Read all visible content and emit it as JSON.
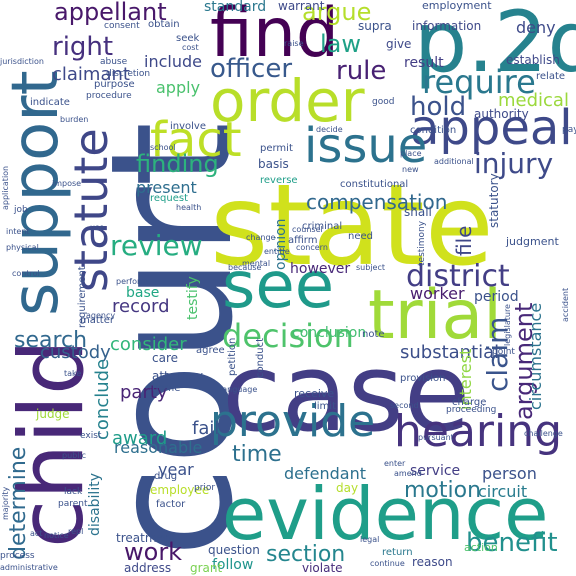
{
  "words": [
    {
      "text": "court",
      "color": "#3b528b"
    },
    {
      "text": "state",
      "color": "#d0e11c"
    },
    {
      "text": "case",
      "color": "#433e85"
    },
    {
      "text": "evidence",
      "color": "#1f9e89"
    },
    {
      "text": "child",
      "color": "#482878"
    },
    {
      "text": "support",
      "color": "#31688e"
    },
    {
      "text": "p.2d",
      "color": "#26828e"
    },
    {
      "text": "find",
      "color": "#440154"
    },
    {
      "text": "trial",
      "color": "#a0da39"
    },
    {
      "text": "order",
      "color": "#b8de29"
    },
    {
      "text": "see",
      "color": "#1f9a8a"
    },
    {
      "text": "appeal",
      "color": "#3e4989"
    },
    {
      "text": "issue",
      "color": "#2c728e"
    },
    {
      "text": "statute",
      "color": "#3f4788"
    },
    {
      "text": "fact",
      "color": "#bddf26"
    },
    {
      "text": "hearing",
      "color": "#46337e"
    },
    {
      "text": "provide",
      "color": "#2c728e"
    },
    {
      "text": "decision",
      "color": "#4ec36b"
    },
    {
      "text": "district",
      "color": "#433e85"
    },
    {
      "text": "review",
      "color": "#26ad81"
    },
    {
      "text": "finding",
      "color": "#2db27d"
    },
    {
      "text": "require",
      "color": "#2a788e"
    },
    {
      "text": "injury",
      "color": "#3e4a89"
    },
    {
      "text": "hold",
      "color": "#3b528b"
    },
    {
      "text": "officer",
      "color": "#38598c"
    },
    {
      "text": "rule",
      "color": "#482173"
    },
    {
      "text": "right",
      "color": "#46307e"
    },
    {
      "text": "law",
      "color": "#1fa187"
    },
    {
      "text": "argue",
      "color": "#b5de2b"
    },
    {
      "text": "appellant",
      "color": "#48186a"
    },
    {
      "text": "claimant",
      "color": "#3e4989"
    },
    {
      "text": "apply",
      "color": "#4ac16d"
    },
    {
      "text": "present",
      "color": "#2e6e8e"
    },
    {
      "text": "search",
      "color": "#31688e"
    },
    {
      "text": "determine",
      "color": "#306a8e"
    },
    {
      "text": "work",
      "color": "#481769"
    },
    {
      "text": "section",
      "color": "#24868e"
    },
    {
      "text": "time",
      "color": "#2d708e"
    },
    {
      "text": "motion",
      "color": "#2a788e"
    },
    {
      "text": "claim",
      "color": "#3a548c"
    },
    {
      "text": "benefit",
      "color": "#21908d"
    },
    {
      "text": "argument",
      "color": "#482878"
    },
    {
      "text": "compensation",
      "color": "#31688e"
    },
    {
      "text": "record",
      "color": "#453781"
    },
    {
      "text": "custody",
      "color": "#34618d"
    },
    {
      "text": "consider",
      "color": "#32b67a"
    },
    {
      "text": "conclude",
      "color": "#26828e"
    },
    {
      "text": "party",
      "color": "#482475"
    },
    {
      "text": "award",
      "color": "#1e9c89"
    },
    {
      "text": "fail",
      "color": "#3b528b"
    },
    {
      "text": "reasonable",
      "color": "#2e6f8e"
    },
    {
      "text": "year",
      "color": "#3b518b"
    },
    {
      "text": "defendant",
      "color": "#2d708e"
    },
    {
      "text": "person",
      "color": "#3b528b"
    },
    {
      "text": "circuit",
      "color": "#287c8e"
    },
    {
      "text": "worker",
      "color": "#481d6f"
    },
    {
      "text": "base",
      "color": "#22a785"
    },
    {
      "text": "medical",
      "color": "#9bd93c"
    },
    {
      "text": "substantial",
      "color": "#3c4f8a"
    },
    {
      "text": "interest",
      "color": "#90d743"
    },
    {
      "text": "circumstance",
      "color": "#2c738e"
    },
    {
      "text": "deny",
      "color": "#3e4a89"
    },
    {
      "text": "include",
      "color": "#3e4989"
    },
    {
      "text": "standard",
      "color": "#2a788e"
    },
    {
      "text": "opinion",
      "color": "#2c738e"
    },
    {
      "text": "however",
      "color": "#482878"
    },
    {
      "text": "testify",
      "color": "#4ac16d"
    },
    {
      "text": "disability",
      "color": "#2c738e"
    },
    {
      "text": "period",
      "color": "#3b528b"
    },
    {
      "text": "service",
      "color": "#433e85"
    },
    {
      "text": "conclusion",
      "color": "#42be71"
    },
    {
      "text": "employee",
      "color": "#b8de29"
    },
    {
      "text": "file",
      "color": "#3f4788"
    },
    {
      "text": "attorney",
      "color": "#3b528b"
    },
    {
      "text": "day",
      "color": "#b5de2b"
    },
    {
      "text": "treatment",
      "color": "#3b528b"
    },
    {
      "text": "follow",
      "color": "#1f948c"
    },
    {
      "text": "address",
      "color": "#3e4989"
    },
    {
      "text": "question",
      "color": "#3b528b"
    },
    {
      "text": "grant",
      "color": "#7ad151"
    },
    {
      "text": "violate",
      "color": "#472d7b"
    },
    {
      "text": "action",
      "color": "#4ec36b"
    },
    {
      "text": "reason",
      "color": "#3e4a89"
    },
    {
      "text": "return",
      "color": "#2a788e"
    },
    {
      "text": "result",
      "color": "#433e85"
    },
    {
      "text": "authority",
      "color": "#3e4a89"
    },
    {
      "text": "establish",
      "color": "#3e4989"
    },
    {
      "text": "employment",
      "color": "#3b528b"
    },
    {
      "text": "warrant",
      "color": "#3e4a89"
    },
    {
      "text": "information",
      "color": "#3e4989"
    },
    {
      "text": "supra",
      "color": "#3b528b"
    },
    {
      "text": "give",
      "color": "#3e4989"
    },
    {
      "text": "seek",
      "color": "#3b528b"
    },
    {
      "text": "purpose",
      "color": "#3b528b"
    },
    {
      "text": "procedure",
      "color": "#3b528b"
    },
    {
      "text": "indicate",
      "color": "#3b528b"
    },
    {
      "text": "involve",
      "color": "#3b528b"
    },
    {
      "text": "permit",
      "color": "#3b528b"
    },
    {
      "text": "condition",
      "color": "#3b528b"
    },
    {
      "text": "basis",
      "color": "#3b528b"
    },
    {
      "text": "reverse",
      "color": "#1f9e89"
    },
    {
      "text": "constitutional",
      "color": "#3b528b"
    },
    {
      "text": "shall",
      "color": "#3b528b"
    },
    {
      "text": "criminal",
      "color": "#3b528b"
    },
    {
      "text": "affirm",
      "color": "#3b528b"
    },
    {
      "text": "need",
      "color": "#3b528b"
    },
    {
      "text": "request",
      "color": "#1f9e89"
    },
    {
      "text": "statutory",
      "color": "#3b528b"
    },
    {
      "text": "judgment",
      "color": "#3b528b"
    },
    {
      "text": "judge",
      "color": "#a0da39"
    },
    {
      "text": "care",
      "color": "#3b528b"
    },
    {
      "text": "home",
      "color": "#3b528b"
    },
    {
      "text": "petition",
      "color": "#3b528b"
    },
    {
      "text": "conduct",
      "color": "#3b528b"
    },
    {
      "text": "receive",
      "color": "#3b528b"
    },
    {
      "text": "limit",
      "color": "#3b528b"
    },
    {
      "text": "provision",
      "color": "#3b528b"
    },
    {
      "text": "proceeding",
      "color": "#3b528b"
    },
    {
      "text": "charge",
      "color": "#3b528b"
    },
    {
      "text": "drug",
      "color": "#3b528b"
    },
    {
      "text": "factor",
      "color": "#3b528b"
    },
    {
      "text": "exist",
      "color": "#3b528b"
    },
    {
      "text": "agree",
      "color": "#3b528b"
    },
    {
      "text": "matter",
      "color": "#3b528b"
    },
    {
      "text": "note",
      "color": "#3b528b"
    },
    {
      "text": "prior",
      "color": "#3b528b"
    },
    {
      "text": "point",
      "color": "#3b528b"
    },
    {
      "text": "requirement",
      "color": "#3b528b"
    },
    {
      "text": "administrative",
      "color": "#3b528b"
    },
    {
      "text": "process",
      "color": "#3b528b"
    },
    {
      "text": "obtain",
      "color": "#3b528b"
    },
    {
      "text": "consent",
      "color": "#3b528b"
    },
    {
      "text": "jurisdiction",
      "color": "#3b528b"
    },
    {
      "text": "abuse",
      "color": "#3b528b"
    },
    {
      "text": "discretion",
      "color": "#3b528b"
    },
    {
      "text": "relate",
      "color": "#3b528b"
    },
    {
      "text": "cost",
      "color": "#3b528b"
    },
    {
      "text": "raise",
      "color": "#3b528b"
    },
    {
      "text": "good",
      "color": "#3b528b"
    },
    {
      "text": "burden",
      "color": "#3b528b"
    },
    {
      "text": "pay",
      "color": "#3b528b"
    },
    {
      "text": "application",
      "color": "#3b528b"
    },
    {
      "text": "job",
      "color": "#3b528b"
    },
    {
      "text": "intent",
      "color": "#3b528b"
    },
    {
      "text": "physical",
      "color": "#3b528b"
    },
    {
      "text": "school",
      "color": "#3b528b"
    },
    {
      "text": "health",
      "color": "#3b528b"
    },
    {
      "text": "change",
      "color": "#3b528b"
    },
    {
      "text": "counsel",
      "color": "#3b528b"
    },
    {
      "text": "testimony",
      "color": "#3b528b"
    },
    {
      "text": "legislature",
      "color": "#3b528b"
    },
    {
      "text": "accident",
      "color": "#3b528b"
    },
    {
      "text": "subject",
      "color": "#3b528b"
    },
    {
      "text": "public",
      "color": "#3b528b"
    },
    {
      "text": "lack",
      "color": "#3b528b"
    },
    {
      "text": "parent",
      "color": "#3b528b"
    },
    {
      "text": "second",
      "color": "#3b528b"
    },
    {
      "text": "pursuant",
      "color": "#3b528b"
    },
    {
      "text": "challenge",
      "color": "#3b528b"
    },
    {
      "text": "mental",
      "color": "#3b528b"
    },
    {
      "text": "because",
      "color": "#3b528b"
    },
    {
      "text": "language",
      "color": "#3b528b"
    },
    {
      "text": "agency",
      "color": "#3b528b"
    },
    {
      "text": "perform",
      "color": "#3b528b"
    },
    {
      "text": "place",
      "color": "#3b528b"
    },
    {
      "text": "take",
      "color": "#3b528b"
    },
    {
      "text": "continue",
      "color": "#3b528b"
    },
    {
      "text": "entitle",
      "color": "#3b528b"
    },
    {
      "text": "majority",
      "color": "#3b528b"
    },
    {
      "text": "act",
      "color": "#3b528b"
    },
    {
      "text": "notice",
      "color": "#3b528b"
    },
    {
      "text": "additional",
      "color": "#3b528b"
    },
    {
      "text": "enter",
      "color": "#3b528b"
    },
    {
      "text": "concern",
      "color": "#3b528b"
    },
    {
      "text": "decide",
      "color": "#3b528b"
    },
    {
      "text": "impose",
      "color": "#3b528b"
    },
    {
      "text": "amend",
      "color": "#3b528b"
    },
    {
      "text": "repl",
      "color": "#3b528b"
    },
    {
      "text": "use",
      "color": "#3b528b"
    },
    {
      "text": "control",
      "color": "#3b528b"
    },
    {
      "text": "legal",
      "color": "#3b528b"
    },
    {
      "text": "new",
      "color": "#3b528b"
    }
  ]
}
